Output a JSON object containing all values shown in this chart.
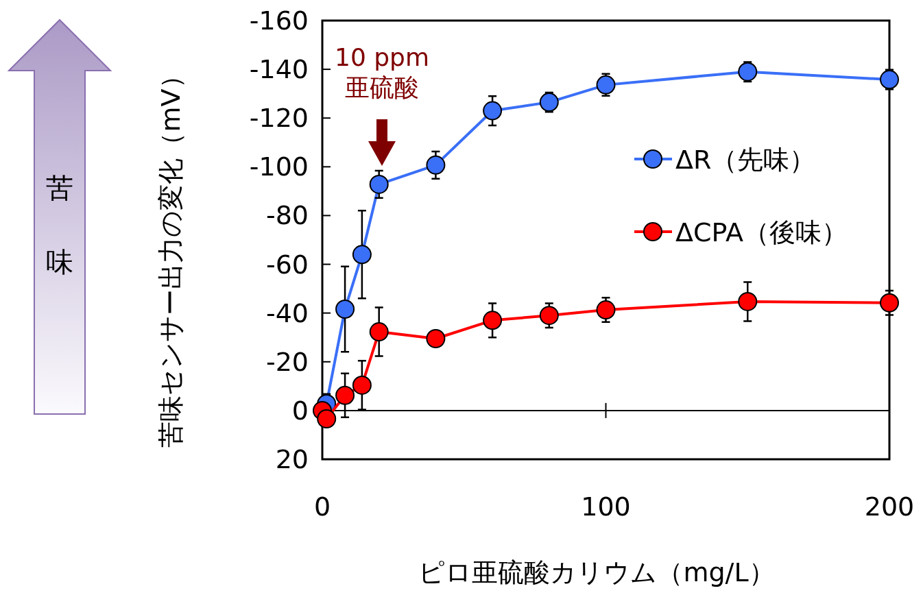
{
  "chart_data": {
    "type": "line",
    "xlabel": "ピロ亜硫酸カリウム（mg/L）",
    "ylabel": "苦味センサー出力の変化（mV）",
    "xlim": [
      0,
      200
    ],
    "xticks": [
      0,
      100,
      200
    ],
    "ylim": [
      20,
      -160
    ],
    "yticks": [
      -160,
      -140,
      -120,
      -100,
      -80,
      -60,
      -40,
      -20,
      0,
      20
    ],
    "marker": "circle",
    "line_style": "solid",
    "grid": false,
    "legend": "right",
    "series": [
      {
        "name": "ΔR（先味）",
        "color": "#3a6ff7",
        "x": [
          1.5,
          8,
          14,
          20,
          40,
          60,
          80,
          100,
          150,
          200
        ],
        "values": [
          -2.8,
          -41.6,
          -64,
          -92.8,
          -100.7,
          -123,
          -126.5,
          -133.6,
          -139,
          -135.8
        ],
        "errors": [
          4,
          17.5,
          18,
          5.6,
          5.6,
          6,
          4,
          4.5,
          4,
          4
        ]
      },
      {
        "name": "ΔCPA（後味）",
        "color": "#ff0000",
        "x": [
          0,
          1.5,
          8,
          14,
          20,
          40,
          60,
          80,
          100,
          150,
          200
        ],
        "values": [
          0,
          3.4,
          -6.2,
          -10.4,
          -32.3,
          -29.5,
          -37,
          -39,
          -41.3,
          -44.7,
          -44.2
        ],
        "errors": [
          null,
          null,
          9,
          10,
          10,
          null,
          7,
          5,
          5,
          8,
          5
        ]
      }
    ],
    "ref_lines": [
      {
        "axis": "y",
        "value": 0,
        "color": "#000000"
      }
    ],
    "annotations": [
      "10 ppm\n亜硫酸",
      "苦味"
    ]
  }
}
